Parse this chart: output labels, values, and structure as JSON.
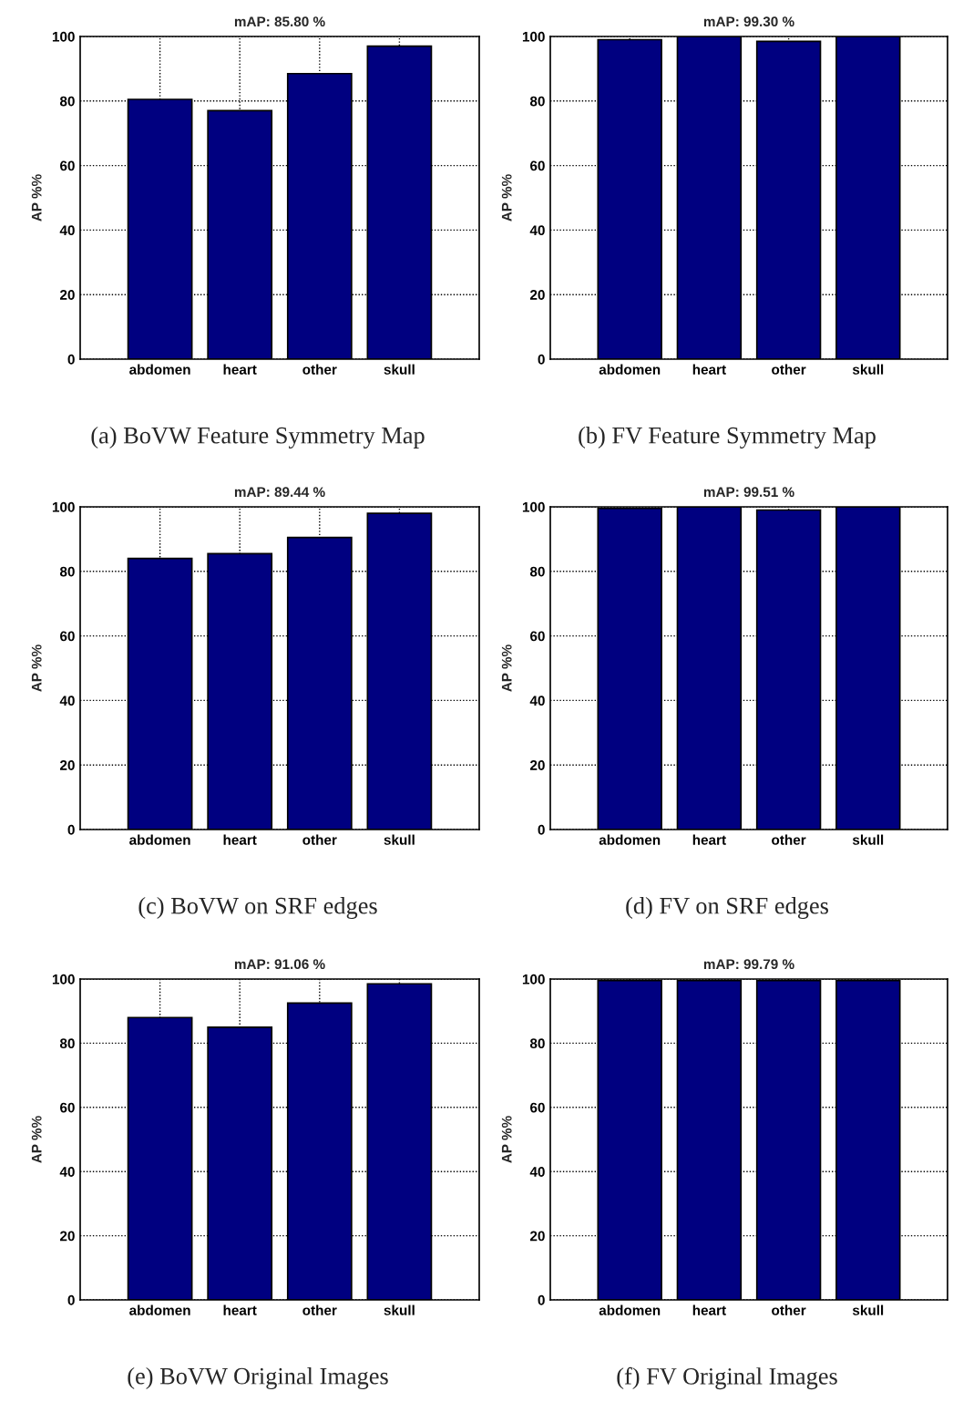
{
  "chart_data": [
    {
      "type": "bar",
      "title": "mAP: 85.80 %",
      "ylabel": "AP %%",
      "categories": [
        "abdomen",
        "heart",
        "other",
        "skull"
      ],
      "values": [
        80.5,
        77,
        88.5,
        97
      ],
      "color": "#000080",
      "ylim": [
        0,
        100
      ],
      "yticks": [
        0,
        20,
        40,
        60,
        80,
        100
      ],
      "grid": true,
      "annotations": [
        "(a) BoVW Feature Symmetry Map"
      ]
    },
    {
      "type": "bar",
      "title": "mAP: 99.30 %",
      "ylabel": "AP %%",
      "categories": [
        "abdomen",
        "heart",
        "other",
        "skull"
      ],
      "values": [
        99,
        100,
        98.5,
        100
      ],
      "color": "#000080",
      "ylim": [
        0,
        100
      ],
      "yticks": [
        0,
        20,
        40,
        60,
        80,
        100
      ],
      "grid": true,
      "annotations": [
        "(b) FV Feature Symmetry Map"
      ]
    },
    {
      "type": "bar",
      "title": "mAP: 89.44 %",
      "ylabel": "AP %%",
      "categories": [
        "abdomen",
        "heart",
        "other",
        "skull"
      ],
      "values": [
        84,
        85.5,
        90.5,
        98
      ],
      "color": "#000080",
      "ylim": [
        0,
        100
      ],
      "yticks": [
        0,
        20,
        40,
        60,
        80,
        100
      ],
      "grid": true,
      "annotations": [
        "(c) BoVW on SRF edges"
      ]
    },
    {
      "type": "bar",
      "title": "mAP: 99.51 %",
      "ylabel": "AP %%",
      "categories": [
        "abdomen",
        "heart",
        "other",
        "skull"
      ],
      "values": [
        99.5,
        100,
        99,
        100
      ],
      "color": "#000080",
      "ylim": [
        0,
        100
      ],
      "yticks": [
        0,
        20,
        40,
        60,
        80,
        100
      ],
      "grid": true,
      "annotations": [
        "(d) FV on SRF edges"
      ]
    },
    {
      "type": "bar",
      "title": "mAP: 91.06 %",
      "ylabel": "AP %%",
      "categories": [
        "abdomen",
        "heart",
        "other",
        "skull"
      ],
      "values": [
        88,
        85,
        92.5,
        98.5
      ],
      "color": "#000080",
      "ylim": [
        0,
        100
      ],
      "yticks": [
        0,
        20,
        40,
        60,
        80,
        100
      ],
      "grid": true,
      "annotations": [
        "(e) BoVW Original Images"
      ]
    },
    {
      "type": "bar",
      "title": "mAP: 99.79 %",
      "ylabel": "AP %%",
      "categories": [
        "abdomen",
        "heart",
        "other",
        "skull"
      ],
      "values": [
        99.5,
        99.5,
        99.5,
        99.5
      ],
      "color": "#000080",
      "ylim": [
        0,
        100
      ],
      "yticks": [
        0,
        20,
        40,
        60,
        80,
        100
      ],
      "grid": true,
      "annotations": [
        "(f) FV Original Images"
      ]
    }
  ]
}
